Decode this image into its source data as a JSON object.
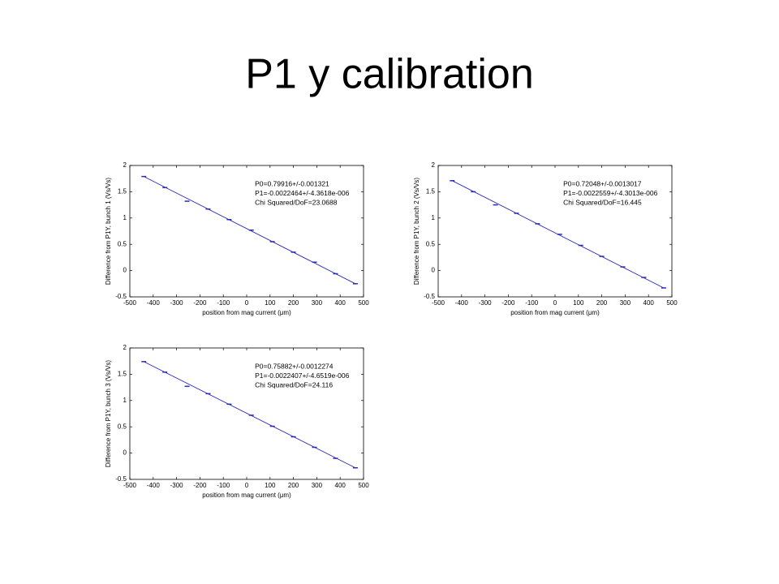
{
  "title": "P1 y calibration",
  "chart_data": [
    {
      "type": "scatter",
      "xlabel": "position from mag current (μm)",
      "ylabel": "Difference from P1Y, bunch 1 (Vs/Vs)",
      "annotations": [
        "P0=0.79916+/-0.001321",
        "P1=-0.0022464+/-4.3618e-006",
        "Chi Squared/DoF=23.0688"
      ],
      "x": [
        -440,
        -350,
        -255,
        -165,
        -75,
        20,
        110,
        200,
        290,
        380,
        465
      ],
      "series": [
        {
          "color": "#2b2bb8",
          "values": [
            1.79,
            1.58,
            1.32,
            1.17,
            0.97,
            0.77,
            0.55,
            0.35,
            0.16,
            -0.06,
            -0.25
          ]
        }
      ],
      "fit": {
        "color": "#2b2bb8",
        "x": [
          -440,
          465
        ],
        "values": [
          1.79,
          -0.25
        ]
      },
      "xlim": [
        -500,
        500
      ],
      "xticks": [
        -500,
        -400,
        -300,
        -200,
        -100,
        0,
        100,
        200,
        300,
        400,
        500
      ],
      "ylim": [
        -0.5,
        2
      ],
      "yticks": [
        -0.5,
        0,
        0.5,
        1,
        1.5,
        2
      ]
    },
    {
      "type": "scatter",
      "xlabel": "position from mag current (μm)",
      "ylabel": "Difference from P1Y, bunch 2 (Vs/Vs)",
      "annotations": [
        "P0=0.72048+/-0.0013017",
        "P1=-0.0022559+/-4.3013e-006",
        "Chi Squared/DoF=16.445"
      ],
      "x": [
        -440,
        -350,
        -255,
        -165,
        -75,
        20,
        110,
        200,
        290,
        380,
        465
      ],
      "series": [
        {
          "color": "#2b2bb8",
          "values": [
            1.71,
            1.5,
            1.25,
            1.09,
            0.89,
            0.69,
            0.48,
            0.27,
            0.07,
            -0.13,
            -0.33
          ]
        }
      ],
      "fit": {
        "color": "#2b2bb8",
        "x": [
          -440,
          465
        ],
        "values": [
          1.71,
          -0.33
        ]
      },
      "xlim": [
        -500,
        500
      ],
      "xticks": [
        -500,
        -400,
        -300,
        -200,
        -100,
        0,
        100,
        200,
        300,
        400,
        500
      ],
      "ylim": [
        -0.5,
        2
      ],
      "yticks": [
        -0.5,
        0,
        0.5,
        1,
        1.5,
        2
      ]
    },
    {
      "type": "scatter",
      "xlabel": "position from mag current (μm)",
      "ylabel": "Difference from P1Y, bunch 3 (Vs/Vs)",
      "annotations": [
        "P0=0.75882+/-0.0012274",
        "P1=-0.0022407+/-4.6519e-006",
        "Chi Squared/DoF=24.116"
      ],
      "x": [
        -440,
        -350,
        -255,
        -165,
        -75,
        20,
        110,
        200,
        290,
        380,
        465
      ],
      "series": [
        {
          "color": "#2b2bb8",
          "values": [
            1.74,
            1.54,
            1.27,
            1.13,
            0.93,
            0.72,
            0.51,
            0.31,
            0.11,
            -0.1,
            -0.28
          ]
        }
      ],
      "fit": {
        "color": "#2b2bb8",
        "x": [
          -440,
          465
        ],
        "values": [
          1.74,
          -0.28
        ]
      },
      "xlim": [
        -500,
        500
      ],
      "xticks": [
        -500,
        -400,
        -300,
        -200,
        -100,
        0,
        100,
        200,
        300,
        400,
        500
      ],
      "ylim": [
        -0.5,
        2
      ],
      "yticks": [
        -0.5,
        0,
        0.5,
        1,
        1.5,
        2
      ]
    }
  ]
}
